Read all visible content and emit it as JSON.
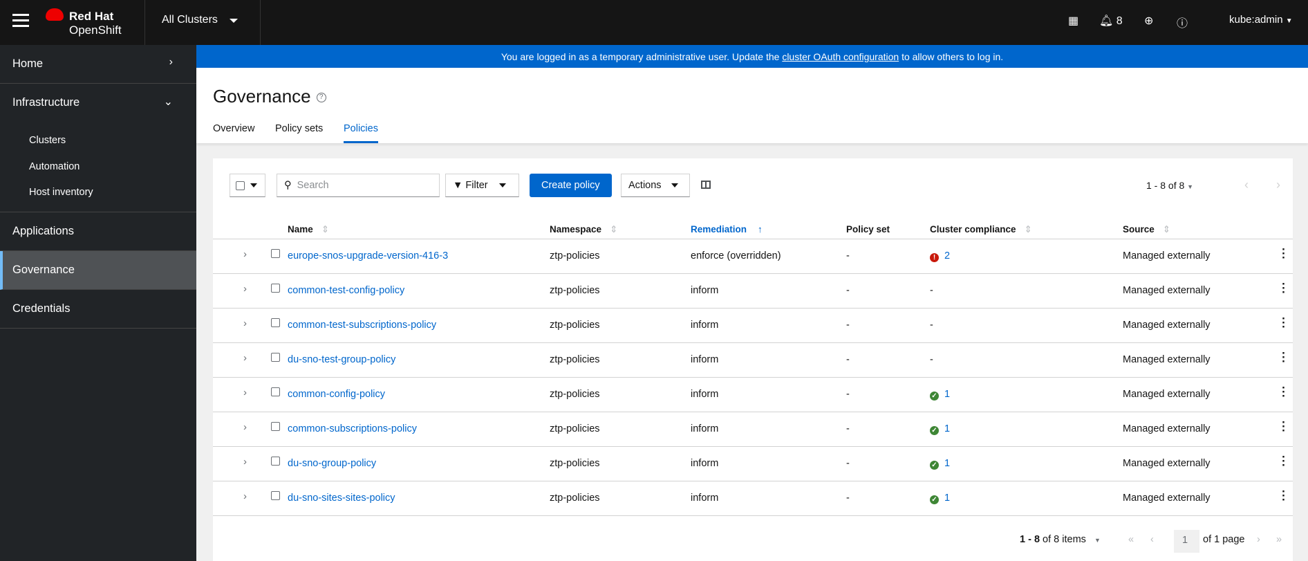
{
  "masthead": {
    "brand_line1": "Red Hat",
    "brand_line2": "OpenShift",
    "cluster_selector": "All Clusters",
    "notifications_count": "8",
    "user": "kube:admin"
  },
  "sidebar": {
    "items": [
      {
        "label": "Home"
      },
      {
        "label": "Infrastructure",
        "children": [
          "Clusters",
          "Automation",
          "Host inventory"
        ]
      },
      {
        "label": "Applications"
      },
      {
        "label": "Governance",
        "active": true
      },
      {
        "label": "Credentials"
      }
    ]
  },
  "banner": {
    "text_before": "You are logged in as a temporary administrative user. Update the ",
    "link": "cluster OAuth configuration",
    "text_after": " to allow others to log in."
  },
  "page": {
    "title": "Governance",
    "tabs": [
      "Overview",
      "Policy sets",
      "Policies"
    ],
    "active_tab": "Policies"
  },
  "toolbar": {
    "search_placeholder": "Search",
    "filter": "Filter",
    "create": "Create policy",
    "actions": "Actions",
    "pagination": "1 - 8 of 8"
  },
  "table": {
    "columns": [
      "Name",
      "Namespace",
      "Remediation",
      "Policy set",
      "Cluster compliance",
      "Source"
    ],
    "sorted_by": "Remediation",
    "rows": [
      {
        "name": "europe-snos-upgrade-version-416-3",
        "namespace": "ztp-policies",
        "remediation": "enforce (overridden)",
        "policy_set": "-",
        "compliance": "2",
        "compliance_status": "violation",
        "source": "Managed externally"
      },
      {
        "name": "common-test-config-policy",
        "namespace": "ztp-policies",
        "remediation": "inform",
        "policy_set": "-",
        "compliance": "-",
        "compliance_status": "none",
        "source": "Managed externally"
      },
      {
        "name": "common-test-subscriptions-policy",
        "namespace": "ztp-policies",
        "remediation": "inform",
        "policy_set": "-",
        "compliance": "-",
        "compliance_status": "none",
        "source": "Managed externally"
      },
      {
        "name": "du-sno-test-group-policy",
        "namespace": "ztp-policies",
        "remediation": "inform",
        "policy_set": "-",
        "compliance": "-",
        "compliance_status": "none",
        "source": "Managed externally"
      },
      {
        "name": "common-config-policy",
        "namespace": "ztp-policies",
        "remediation": "inform",
        "policy_set": "-",
        "compliance": "1",
        "compliance_status": "compliant",
        "source": "Managed externally"
      },
      {
        "name": "common-subscriptions-policy",
        "namespace": "ztp-policies",
        "remediation": "inform",
        "policy_set": "-",
        "compliance": "1",
        "compliance_status": "compliant",
        "source": "Managed externally"
      },
      {
        "name": "du-sno-group-policy",
        "namespace": "ztp-policies",
        "remediation": "inform",
        "policy_set": "-",
        "compliance": "1",
        "compliance_status": "compliant",
        "source": "Managed externally"
      },
      {
        "name": "du-sno-sites-sites-policy",
        "namespace": "ztp-policies",
        "remediation": "inform",
        "policy_set": "-",
        "compliance": "1",
        "compliance_status": "compliant",
        "source": "Managed externally"
      }
    ]
  },
  "footer": {
    "range": "1 - 8",
    "of_items": "of 8 items",
    "page": "1",
    "of_pages": "of 1 page"
  },
  "colors": {
    "accent": "#0066cc",
    "danger": "#c9190b",
    "success": "#3e8635"
  }
}
